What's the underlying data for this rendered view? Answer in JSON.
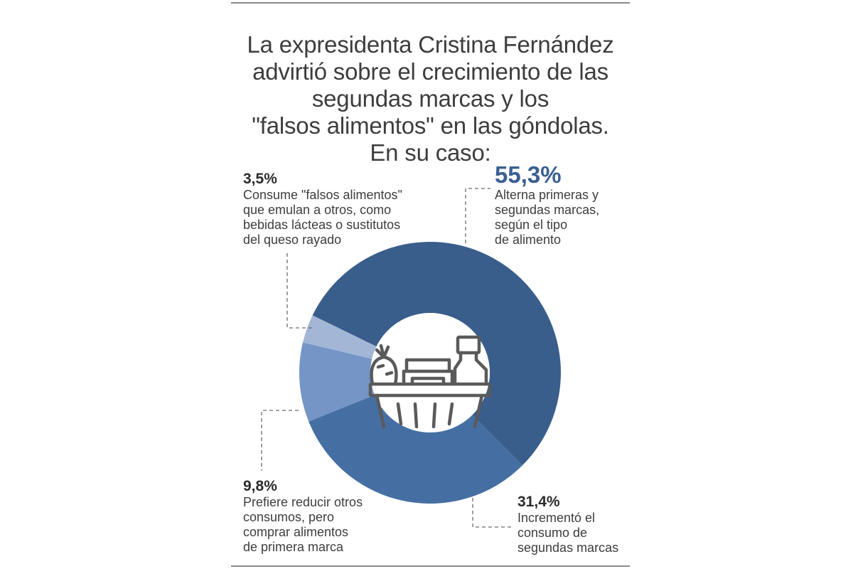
{
  "title": {
    "lines": [
      "La expresidenta Cristina Fernández",
      "advirtió sobre el crecimiento de las",
      "segundas marcas y los",
      "\"falsos alimentos\" en las góndolas.",
      "En su caso:"
    ]
  },
  "center_icon": "grocery-basket-icon",
  "colors": {
    "seg_alterna": "#3a5e8c",
    "seg_incremento": "#456fa3",
    "seg_prefiere": "#7495c6",
    "seg_falsos": "#a3b6d6",
    "highlight_pct": "#3a5f92",
    "text": "#3d3d3d",
    "rule": "#8a8a8a",
    "icon": "#5a5a5c"
  },
  "labels": {
    "alterna": {
      "pct": "55,3%",
      "desc": [
        "Alterna primeras y",
        "segundas marcas,",
        "según el tipo",
        "de alimento"
      ]
    },
    "incremento": {
      "pct": "31,4%",
      "desc": [
        "Incrementó el",
        "consumo de",
        "segundas marcas"
      ]
    },
    "prefiere": {
      "pct": "9,8%",
      "desc": [
        "Prefiere reducir otros",
        "consumos, pero",
        "comprar alimentos",
        "de primera marca"
      ]
    },
    "falsos": {
      "pct": "3,5%",
      "desc": [
        "Consume \"falsos alimentos\"",
        "que emulan a otros, como",
        "bebidas lácteas o sustitutos",
        "del queso rayado"
      ]
    }
  },
  "chart_data": {
    "type": "pie",
    "subtype": "donut",
    "title": "La expresidenta Cristina Fernández advirtió sobre el crecimiento de las segundas marcas y los \"falsos alimentos\" en las góndolas. En su caso:",
    "categories": [
      "Alterna primeras y segundas marcas, según el tipo de alimento",
      "Incrementó el consumo de segundas marcas",
      "Prefiere reducir otros consumos, pero comprar alimentos de primera marca",
      "Consume \"falsos alimentos\" que emulan a otros, como bebidas lácteas o sustitutos del queso rayado"
    ],
    "values": [
      55.3,
      31.4,
      9.8,
      3.5
    ],
    "value_labels": [
      "55,3%",
      "31,4%",
      "9,8%",
      "3,5%"
    ],
    "colors": [
      "#3a5e8c",
      "#456fa3",
      "#7495c6",
      "#a3b6d6"
    ],
    "legend": "none (callout labels with dashed leader lines)",
    "center_icon": "grocery basket"
  }
}
